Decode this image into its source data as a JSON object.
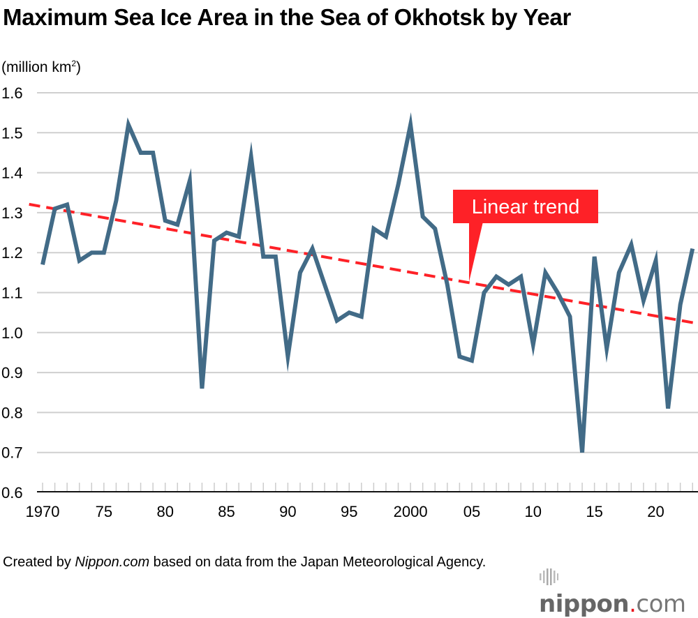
{
  "chart_data": {
    "type": "line",
    "title": "Maximum Sea Ice Area in the Sea of Okhotsk by Year",
    "ylabel": "(million km²)",
    "ylabel_main": "(million km",
    "ylabel_sup": "2",
    "ylabel_close": ")",
    "ylim": [
      0.6,
      1.6
    ],
    "yticks": [
      "0.6",
      "0.7",
      "0.8",
      "0.9",
      "1.0",
      "1.1",
      "1.2",
      "1.3",
      "1.4",
      "1.5",
      "1.6"
    ],
    "xlim": [
      1970,
      2023
    ],
    "xtick_labels": [
      "1970",
      "75",
      "80",
      "85",
      "90",
      "95",
      "2000",
      "05",
      "10",
      "15",
      "20"
    ],
    "grid": true,
    "x": [
      1970,
      1971,
      1972,
      1973,
      1974,
      1975,
      1976,
      1977,
      1978,
      1979,
      1980,
      1981,
      1982,
      1983,
      1984,
      1985,
      1986,
      1987,
      1988,
      1989,
      1990,
      1991,
      1992,
      1993,
      1994,
      1995,
      1996,
      1997,
      1998,
      1999,
      2000,
      2001,
      2002,
      2003,
      2004,
      2005,
      2006,
      2007,
      2008,
      2009,
      2010,
      2011,
      2012,
      2013,
      2014,
      2015,
      2016,
      2017,
      2018,
      2019,
      2020,
      2021,
      2022,
      2023
    ],
    "series": [
      {
        "values": [
          1.17,
          1.31,
          1.32,
          1.18,
          1.2,
          1.2,
          1.33,
          1.52,
          1.45,
          1.45,
          1.28,
          1.27,
          1.38,
          0.86,
          1.23,
          1.25,
          1.24,
          1.44,
          1.19,
          1.19,
          0.94,
          1.15,
          1.21,
          1.12,
          1.03,
          1.05,
          1.04,
          1.26,
          1.24,
          1.37,
          1.52,
          1.29,
          1.26,
          1.12,
          0.94,
          0.93,
          1.1,
          1.14,
          1.12,
          1.14,
          0.97,
          1.15,
          1.1,
          1.04,
          0.7,
          1.19,
          0.96,
          1.15,
          1.22,
          1.08,
          1.18,
          0.81,
          1.07,
          1.21
        ],
        "color": "#426b87"
      }
    ],
    "trend": {
      "label": "Linear trend",
      "start": [
        1970,
        1.315
      ],
      "end": [
        2023,
        1.025
      ],
      "color": "#fe2127"
    }
  },
  "footer": {
    "credit_prefix": "Created by ",
    "credit_site": "Nippon.com",
    "credit_suffix": " based on data from the Japan Meteorological Agency."
  },
  "logo": {
    "text": "nippon.com"
  }
}
